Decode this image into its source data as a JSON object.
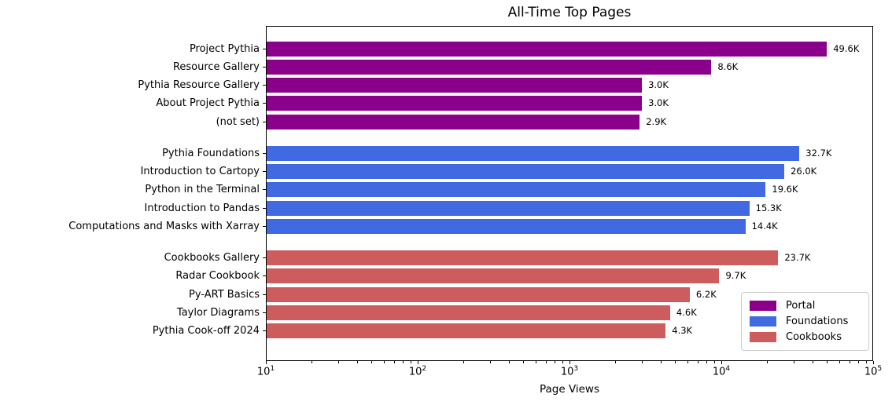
{
  "chart_data": {
    "type": "bar",
    "orientation": "horizontal",
    "title": "All-Time Top Pages",
    "xlabel": "Page Views",
    "xscale": "log",
    "xlim": [
      10,
      100000
    ],
    "x_tick_labels": [
      "10^1",
      "10^2",
      "10^3",
      "10^4",
      "10^5"
    ],
    "grid": false,
    "legend": {
      "position": "lower right",
      "entries": [
        "Portal",
        "Foundations",
        "Cookbooks"
      ]
    },
    "groups": [
      {
        "name": "Portal",
        "color": "#8B008B",
        "items": [
          {
            "label": "Project Pythia",
            "value": 49600,
            "value_label": "49.6K"
          },
          {
            "label": "Resource Gallery",
            "value": 8600,
            "value_label": "8.6K"
          },
          {
            "label": "Pythia Resource Gallery",
            "value": 3000,
            "value_label": "3.0K"
          },
          {
            "label": "About Project Pythia",
            "value": 3000,
            "value_label": "3.0K"
          },
          {
            "label": "(not set)",
            "value": 2900,
            "value_label": "2.9K"
          }
        ]
      },
      {
        "name": "Foundations",
        "color": "#4169E1",
        "items": [
          {
            "label": "Pythia Foundations",
            "value": 32700,
            "value_label": "32.7K"
          },
          {
            "label": "Introduction to Cartopy",
            "value": 26000,
            "value_label": "26.0K"
          },
          {
            "label": "Python in the Terminal",
            "value": 19600,
            "value_label": "19.6K"
          },
          {
            "label": "Introduction to Pandas",
            "value": 15300,
            "value_label": "15.3K"
          },
          {
            "label": "Computations and Masks with Xarray",
            "value": 14400,
            "value_label": "14.4K"
          }
        ]
      },
      {
        "name": "Cookbooks",
        "color": "#CD5C5C",
        "items": [
          {
            "label": "Cookbooks Gallery",
            "value": 23700,
            "value_label": "23.7K"
          },
          {
            "label": "Radar Cookbook",
            "value": 9700,
            "value_label": "9.7K"
          },
          {
            "label": "Py-ART Basics",
            "value": 6200,
            "value_label": "6.2K"
          },
          {
            "label": "Taylor Diagrams",
            "value": 4600,
            "value_label": "4.6K"
          },
          {
            "label": "Pythia Cook-off 2024",
            "value": 4300,
            "value_label": "4.3K"
          }
        ]
      }
    ]
  }
}
